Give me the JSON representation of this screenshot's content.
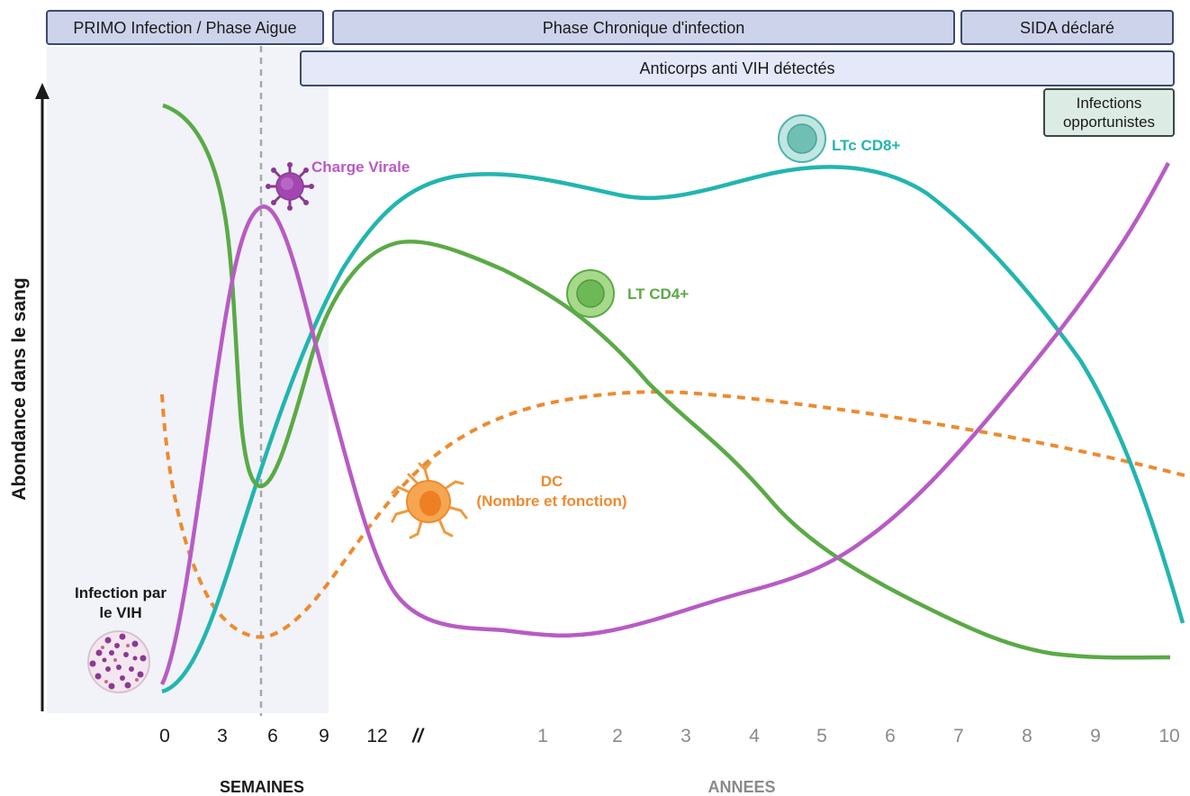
{
  "phases": {
    "primo": "PRIMO Infection / Phase Aigue",
    "chronique": "Phase Chronique d'infection",
    "sida": "SIDA déclaré",
    "anticorps": "Anticorps anti VIH détectés",
    "infections_line1": "Infections",
    "infections_line2": "opportunistes"
  },
  "axes": {
    "ylabel": "Abondance dans le sang",
    "weeks_label": "SEMAINES",
    "years_label": "ANNEES",
    "break_mark": "//",
    "week_ticks": [
      "0",
      "3",
      "6",
      "9",
      "12"
    ],
    "year_ticks": [
      "1",
      "2",
      "3",
      "4",
      "5",
      "6",
      "7",
      "8",
      "9",
      "10"
    ]
  },
  "annotations": {
    "charge_virale": "Charge Virale",
    "ltc_cd8": "LTc CD8+",
    "lt_cd4": "LT CD4+",
    "dc_line1": "DC",
    "dc_line2": "(Nombre et fonction)",
    "infection_line1": "Infection par",
    "infection_line2": "le VIH"
  },
  "colors": {
    "cd4": "#5aaa46",
    "cd8": "#22b5b0",
    "viral": "#b85bc4",
    "dc": "#ee8a2f",
    "acute_shade": "#f1f3f8",
    "axis": "#1a1a1a",
    "week_tick_text": "#1a1a1a",
    "year_tick_text": "#8a8a8a"
  },
  "icons": {
    "virus_small": "virus-icon",
    "virus_large": "hiv-virion-icon",
    "cd8_cell": "cd8-cell-icon",
    "cd4_cell": "cd4-cell-icon",
    "dendritic_cell": "dendritic-cell-icon"
  }
}
